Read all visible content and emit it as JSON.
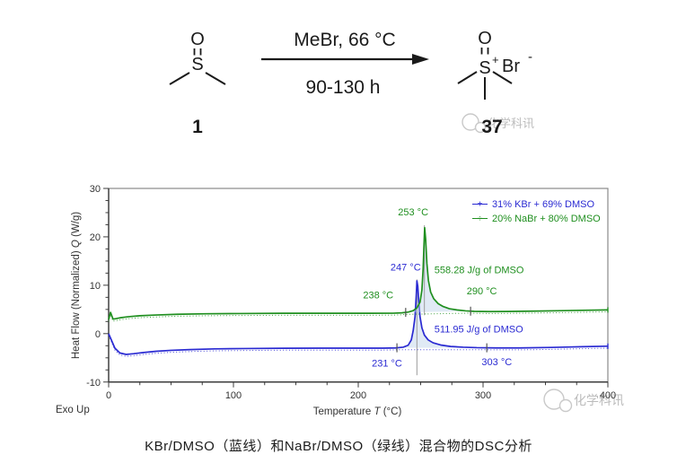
{
  "scheme": {
    "reactant": {
      "o": "O",
      "s": "S",
      "label": "1"
    },
    "conditions": {
      "top": "MeBr, 66 °C",
      "bottom": "90-130 h"
    },
    "product": {
      "o": "O",
      "s": "S",
      "plus": "+",
      "anion": "Br",
      "anion_charge": "-",
      "label": "37"
    }
  },
  "watermark": {
    "text": "化学科讯"
  },
  "chart_data": {
    "type": "line",
    "xlabel_parts": [
      "Temperature ",
      "T",
      " (°C)"
    ],
    "ylabel_parts": [
      "Heat Flow (Normalized) ",
      "Q",
      " (W/g)"
    ],
    "xlim": [
      0,
      400
    ],
    "ylim": [
      -10,
      30
    ],
    "x_major_ticks": [
      0,
      100,
      200,
      300,
      400
    ],
    "x_minor_step": 25,
    "y_major_ticks": [
      30,
      20,
      10,
      0,
      -10
    ],
    "y_minor_step": 2.5,
    "grid": false,
    "exo_note": "Exo Up",
    "legend": {
      "position": "top-right",
      "items": [
        {
          "label": "31% KBr + 69% DMSO",
          "marker": "+",
          "color": "#2a2ad2"
        },
        {
          "label": "20% NaBr + 80% DMSO",
          "marker": "÷",
          "color": "#1f8f1f"
        }
      ]
    },
    "series": [
      {
        "name": "31% KBr + 69% DMSO",
        "color": "#2a2ad2",
        "peak_c": 247,
        "onset_c": 231,
        "end_c": 303,
        "enthalpy_label": "511.95 J/g of DMSO",
        "cursor": [
          11.2,
          -8.6
        ],
        "points": [
          [
            0,
            0
          ],
          [
            2,
            -1.2
          ],
          [
            5,
            -3.0
          ],
          [
            9,
            -4.0
          ],
          [
            14,
            -4.3
          ],
          [
            20,
            -4.15
          ],
          [
            28,
            -3.9
          ],
          [
            38,
            -3.65
          ],
          [
            50,
            -3.45
          ],
          [
            65,
            -3.3
          ],
          [
            85,
            -3.15
          ],
          [
            110,
            -3.08
          ],
          [
            140,
            -3.02
          ],
          [
            170,
            -3.0
          ],
          [
            200,
            -3.0
          ],
          [
            220,
            -3.0
          ],
          [
            230,
            -2.95
          ],
          [
            236,
            -2.8
          ],
          [
            240,
            -2.4
          ],
          [
            242.5,
            -1.3
          ],
          [
            244,
            0.6
          ],
          [
            245.5,
            3.5
          ],
          [
            246.5,
            8.0
          ],
          [
            247,
            10.9
          ],
          [
            247.7,
            9.8
          ],
          [
            248.5,
            6.5
          ],
          [
            249.5,
            3.5
          ],
          [
            251,
            1.2
          ],
          [
            253,
            -0.3
          ],
          [
            256,
            -1.3
          ],
          [
            260,
            -1.9
          ],
          [
            266,
            -2.35
          ],
          [
            274,
            -2.65
          ],
          [
            284,
            -2.8
          ],
          [
            295,
            -2.9
          ],
          [
            310,
            -2.95
          ],
          [
            330,
            -2.95
          ],
          [
            355,
            -2.85
          ],
          [
            380,
            -2.7
          ],
          [
            400,
            -2.6
          ]
        ]
      },
      {
        "name": "20% NaBr + 80% DMSO",
        "color": "#1f8f1f",
        "peak_c": 253,
        "onset_c": 238,
        "end_c": 290,
        "enthalpy_label": "558.28 J/g of DMSO",
        "cursor": [
          22.4,
          3.8
        ],
        "points": [
          [
            0,
            2.9
          ],
          [
            1.5,
            4.4
          ],
          [
            3.5,
            3.0
          ],
          [
            6,
            3.1
          ],
          [
            10,
            3.3
          ],
          [
            16,
            3.5
          ],
          [
            25,
            3.7
          ],
          [
            38,
            3.85
          ],
          [
            55,
            4.0
          ],
          [
            78,
            4.1
          ],
          [
            105,
            4.15
          ],
          [
            140,
            4.2
          ],
          [
            175,
            4.2
          ],
          [
            210,
            4.2
          ],
          [
            228,
            4.22
          ],
          [
            235,
            4.3
          ],
          [
            240,
            4.45
          ],
          [
            244,
            4.75
          ],
          [
            247,
            5.3
          ],
          [
            249.5,
            6.5
          ],
          [
            251,
            9.0
          ],
          [
            252,
            13.5
          ],
          [
            252.7,
            18.5
          ],
          [
            253.2,
            21.9
          ],
          [
            254,
            19.5
          ],
          [
            255,
            14.5
          ],
          [
            256.2,
            11.0
          ],
          [
            258,
            8.6
          ],
          [
            260.5,
            7.2
          ],
          [
            264,
            6.2
          ],
          [
            268,
            5.6
          ],
          [
            273,
            5.15
          ],
          [
            279,
            4.9
          ],
          [
            286,
            4.7
          ],
          [
            293,
            4.6
          ],
          [
            305,
            4.55
          ],
          [
            320,
            4.58
          ],
          [
            340,
            4.65
          ],
          [
            365,
            4.75
          ],
          [
            400,
            4.9
          ]
        ]
      }
    ],
    "annotations": [
      {
        "text": "253 °C",
        "color": "#1f8f1f",
        "at": [
          244,
          25.2
        ],
        "anchor": "middle"
      },
      {
        "text": "247 °C",
        "color": "#2a2ad2",
        "at": [
          238,
          13.8
        ],
        "anchor": "middle"
      },
      {
        "text": "558.28 J/g of DMSO",
        "color": "#1f8f1f",
        "at": [
          261,
          13.2
        ],
        "anchor": "start"
      },
      {
        "text": "238 °C",
        "color": "#1f8f1f",
        "at": [
          216,
          8.0
        ],
        "anchor": "middle"
      },
      {
        "text": "290 °C",
        "color": "#1f8f1f",
        "at": [
          299,
          8.9
        ],
        "anchor": "middle"
      },
      {
        "text": "511.95 J/g of DMSO",
        "color": "#2a2ad2",
        "at": [
          261,
          1.0
        ],
        "anchor": "start"
      },
      {
        "text": "231 °C",
        "color": "#2a2ad2",
        "at": [
          223,
          -6.1
        ],
        "anchor": "middle"
      },
      {
        "text": "303 °C",
        "color": "#2a2ad2",
        "at": [
          311,
          -5.8
        ],
        "anchor": "middle"
      }
    ]
  },
  "caption": "KBr/DMSO（蓝线）和NaBr/DMSO（绿线）混合物的DSC分析"
}
